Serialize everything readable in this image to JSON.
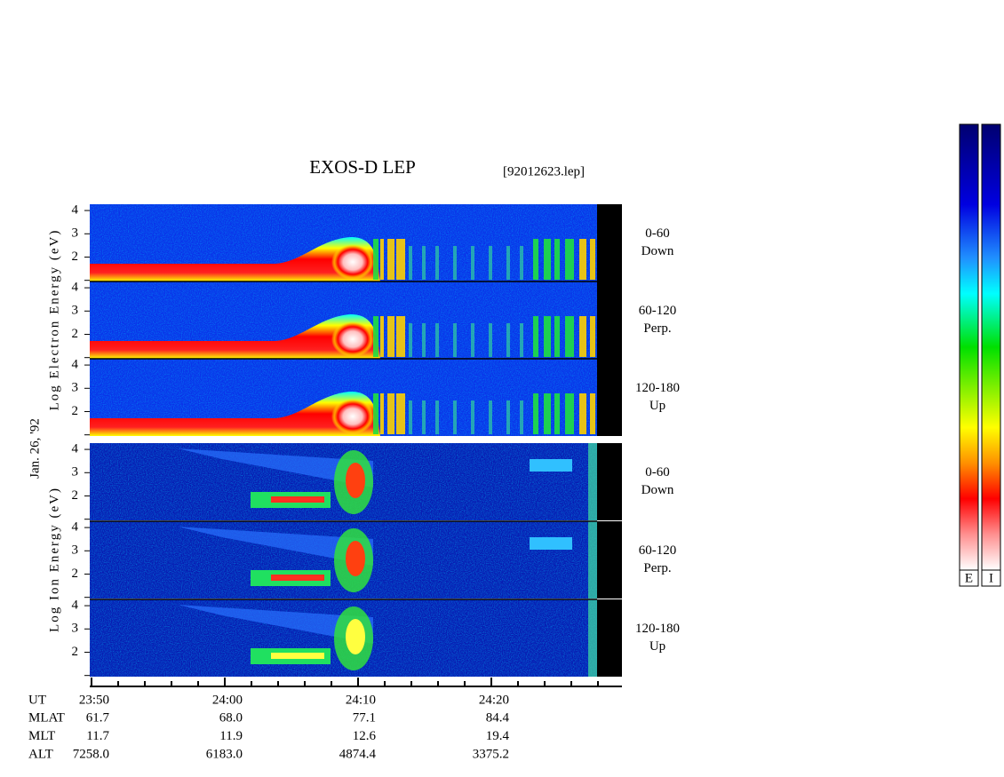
{
  "chart_data": {
    "type": "spectrogram",
    "title": "EXOS-D LEP",
    "file": "[92012623.lep]",
    "date": "Jan. 26, '92",
    "xlim": [
      1430,
      1469.8
    ],
    "xticks": [
      {
        "value": 1430,
        "label": "23:50"
      },
      {
        "value": 1440,
        "label": "24:00"
      },
      {
        "value": 1450,
        "label": "24:10"
      },
      {
        "value": 1460,
        "label": "24:20"
      }
    ],
    "minor_xticks": [
      1432,
      1434,
      1436,
      1438,
      1442,
      1444,
      1446,
      1448,
      1452,
      1454,
      1456,
      1458,
      1462,
      1464,
      1466,
      1468
    ],
    "ylim": [
      0.95,
      4.27
    ],
    "yticks": [
      {
        "value": 1,
        "label": null
      },
      2,
      3,
      4
    ],
    "groups": [
      {
        "axis_label": "Log Electron Energy (eV)",
        "panels": [
          {
            "pitch": "0-60",
            "direction": "Down"
          },
          {
            "pitch": "60-120",
            "direction": "Perp."
          },
          {
            "pitch": "120-180",
            "direction": "Up"
          }
        ]
      },
      {
        "axis_label": "Log Ion Energy (eV)",
        "panels": [
          {
            "pitch": "0-60",
            "direction": "Down"
          },
          {
            "pitch": "60-120",
            "direction": "Perp."
          },
          {
            "pitch": "120-180",
            "direction": "Up"
          }
        ]
      }
    ],
    "ephemeris": [
      {
        "name": "UT"
      },
      {
        "name": "MLAT",
        "values": [
          "61.7",
          "68.0",
          "77.1",
          "84.4"
        ]
      },
      {
        "name": "MLT",
        "values": [
          "11.7",
          "11.9",
          "12.6",
          "19.4"
        ]
      },
      {
        "name": "ALT",
        "values": [
          "7258.0",
          "6183.0",
          "4874.4",
          "3375.2"
        ]
      }
    ],
    "colorbars": [
      "E",
      "I"
    ]
  }
}
